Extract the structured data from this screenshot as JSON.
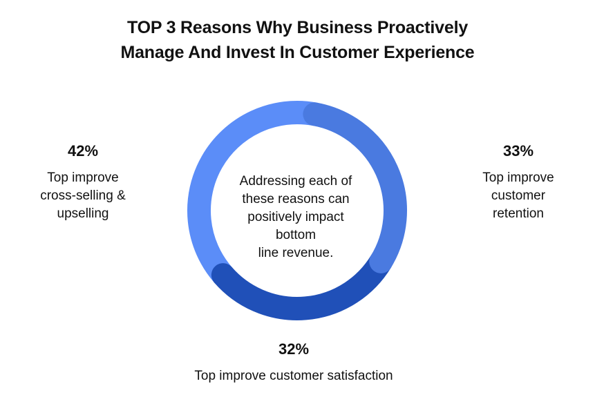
{
  "title": {
    "line1": "TOP 3 Reasons Why Business Proactively",
    "line2": "Manage And Invest In Customer Experience"
  },
  "center_text": {
    "line1": "Addressing each of",
    "line2": "these reasons can",
    "line3": "positively impact",
    "line4": "bottom",
    "line5": "line revenue."
  },
  "labels": {
    "left": {
      "pct": "42%",
      "line1": "Top improve",
      "line2": "cross-selling &",
      "line3": "upselling"
    },
    "right": {
      "pct": "33%",
      "line1": "Top improve",
      "line2": "customer",
      "line3": "retention"
    },
    "bottom": {
      "pct": "32%",
      "line1": "Top improve customer satisfaction"
    }
  },
  "colors": {
    "cross_selling": "#5b8df8",
    "retention": "#4a7ae0",
    "satisfaction": "#2050b8",
    "text": "#111111"
  },
  "chart_data": {
    "type": "pie",
    "title": "TOP 3 Reasons Why Business Proactively Manage And Invest In Customer Experience",
    "categories": [
      "Top improve cross-selling & upselling",
      "Top improve customer retention",
      "Top improve customer satisfaction"
    ],
    "values": [
      42,
      33,
      32
    ],
    "unit": "%",
    "style": "donut"
  }
}
